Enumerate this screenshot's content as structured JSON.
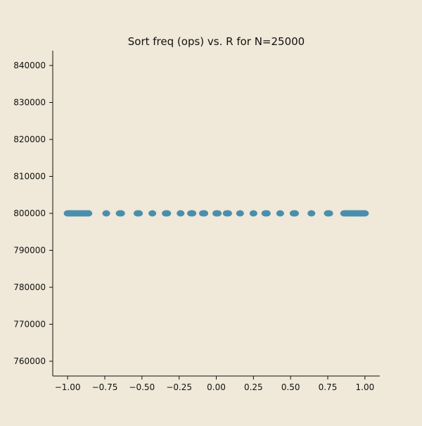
{
  "colors": {
    "background": "#f0e8d8",
    "marker": "#4a8eae",
    "axis": "#111111"
  },
  "chart_data": {
    "type": "scatter",
    "title": "Sort freq (ops) vs. R for N=25000",
    "xlabel": "",
    "ylabel": "",
    "xlim": [
      -1.1,
      1.1
    ],
    "ylim": [
      756000,
      844000
    ],
    "grid": false,
    "x_ticks": [
      -1.0,
      -0.75,
      -0.5,
      -0.25,
      0.0,
      0.25,
      0.5,
      0.75,
      1.0
    ],
    "x_tick_labels": [
      "−1.00",
      "−0.75",
      "−0.50",
      "−0.25",
      "0.00",
      "0.25",
      "0.50",
      "0.75",
      "1.00"
    ],
    "y_ticks": [
      760000,
      770000,
      780000,
      790000,
      800000,
      810000,
      820000,
      830000,
      840000
    ],
    "y_tick_labels": [
      "760000",
      "770000",
      "780000",
      "790000",
      "800000",
      "810000",
      "820000",
      "830000",
      "840000"
    ],
    "series": [
      {
        "x": [
          -1.0,
          -0.99,
          -0.98,
          -0.97,
          -0.96,
          -0.95,
          -0.94,
          -0.93,
          -0.92,
          -0.91,
          -0.9,
          -0.89,
          -0.88,
          -0.87,
          -0.86,
          -0.74,
          -0.65,
          -0.64,
          -0.53,
          -0.52,
          -0.43,
          -0.34,
          -0.33,
          -0.24,
          -0.17,
          -0.16,
          -0.09,
          -0.08,
          0.0,
          0.01,
          0.07,
          0.08,
          0.16,
          0.25,
          0.33,
          0.34,
          0.43,
          0.52,
          0.53,
          0.64,
          0.75,
          0.76,
          0.86,
          0.87,
          0.88,
          0.89,
          0.9,
          0.91,
          0.92,
          0.93,
          0.94,
          0.95,
          0.96,
          0.97,
          0.98,
          0.99,
          1.0
        ],
        "y": [
          800000,
          800000,
          800000,
          800000,
          800000,
          800000,
          800000,
          800000,
          800000,
          800000,
          800000,
          800000,
          800000,
          800000,
          800000,
          800000,
          800000,
          800000,
          800000,
          800000,
          800000,
          800000,
          800000,
          800000,
          800000,
          800000,
          800000,
          800000,
          800000,
          800000,
          800000,
          800000,
          800000,
          800000,
          800000,
          800000,
          800000,
          800000,
          800000,
          800000,
          800000,
          800000,
          800000,
          800000,
          800000,
          800000,
          800000,
          800000,
          800000,
          800000,
          800000,
          800000,
          800000,
          800000,
          800000,
          800000,
          800000
        ]
      }
    ]
  }
}
